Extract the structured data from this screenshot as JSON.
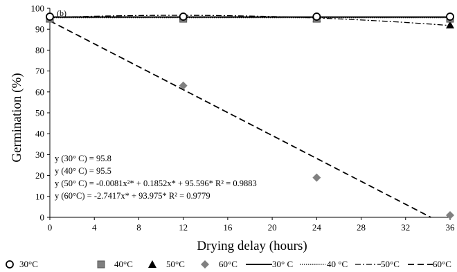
{
  "chart_data": {
    "type": "scatter",
    "panel_label": "(b)",
    "xlabel": "Drying delay (hours)",
    "ylabel": "Germination (%)",
    "xlim": [
      0,
      36
    ],
    "ylim": [
      0,
      100
    ],
    "xticks": [
      "0",
      "4",
      "8",
      "12",
      "16",
      "20",
      "24",
      "28",
      "32",
      "36"
    ],
    "yticks": [
      "0",
      "10",
      "20",
      "30",
      "40",
      "50",
      "60",
      "70",
      "80",
      "90",
      "100"
    ],
    "grid": false,
    "legend_position": "bottom",
    "x": [
      0,
      12,
      24,
      36
    ],
    "series": [
      {
        "name": "30°C",
        "marker": "circle",
        "color": "#000000",
        "values": [
          96,
          96,
          96,
          96
        ]
      },
      {
        "name": "40°C",
        "marker": "square",
        "color": "#7f7f7f",
        "values": [
          95,
          95,
          95,
          95
        ]
      },
      {
        "name": "50°C",
        "marker": "triangle",
        "color": "#000000",
        "values": [
          95,
          96,
          95,
          92
        ]
      },
      {
        "name": "60°C",
        "marker": "diamond",
        "color": "#808080",
        "values": [
          95,
          63,
          19,
          1
        ]
      }
    ],
    "fits": [
      {
        "name": "30° C",
        "style": "solid",
        "equation": "y (30° C) =  95.8"
      },
      {
        "name": "40 °C",
        "style": "dotted",
        "equation": "y (40° C) = 95.5"
      },
      {
        "name": "50°C",
        "style": "dashdot",
        "equation": "y (50° C) = -0.0081x²* + 0.1852x* + 95.596*  R² = 0.9883"
      },
      {
        "name": "60°C",
        "style": "dashed",
        "equation": "y (60°C) = -2.7417x* + 93.975*  R² = 0.9779"
      }
    ]
  }
}
